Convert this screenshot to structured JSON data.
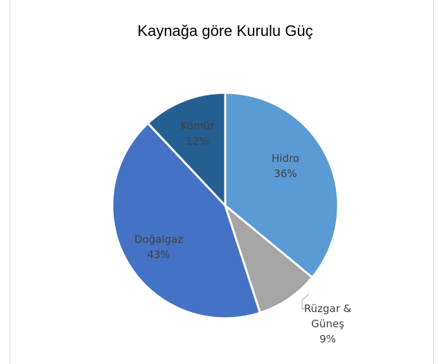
{
  "chart_data": {
    "type": "pie",
    "title": "Kaynağa göre Kurulu Güç",
    "categories": [
      "Hidro",
      "Rüzgar & Güneş",
      "Doğalgaz",
      "Kömür"
    ],
    "values": [
      36,
      9,
      43,
      12
    ],
    "value_labels": [
      "36%",
      "9%",
      "43%",
      "12%"
    ],
    "colors": [
      "#5b9bd5",
      "#a5a5a5",
      "#4472c4",
      "#255e91"
    ]
  }
}
